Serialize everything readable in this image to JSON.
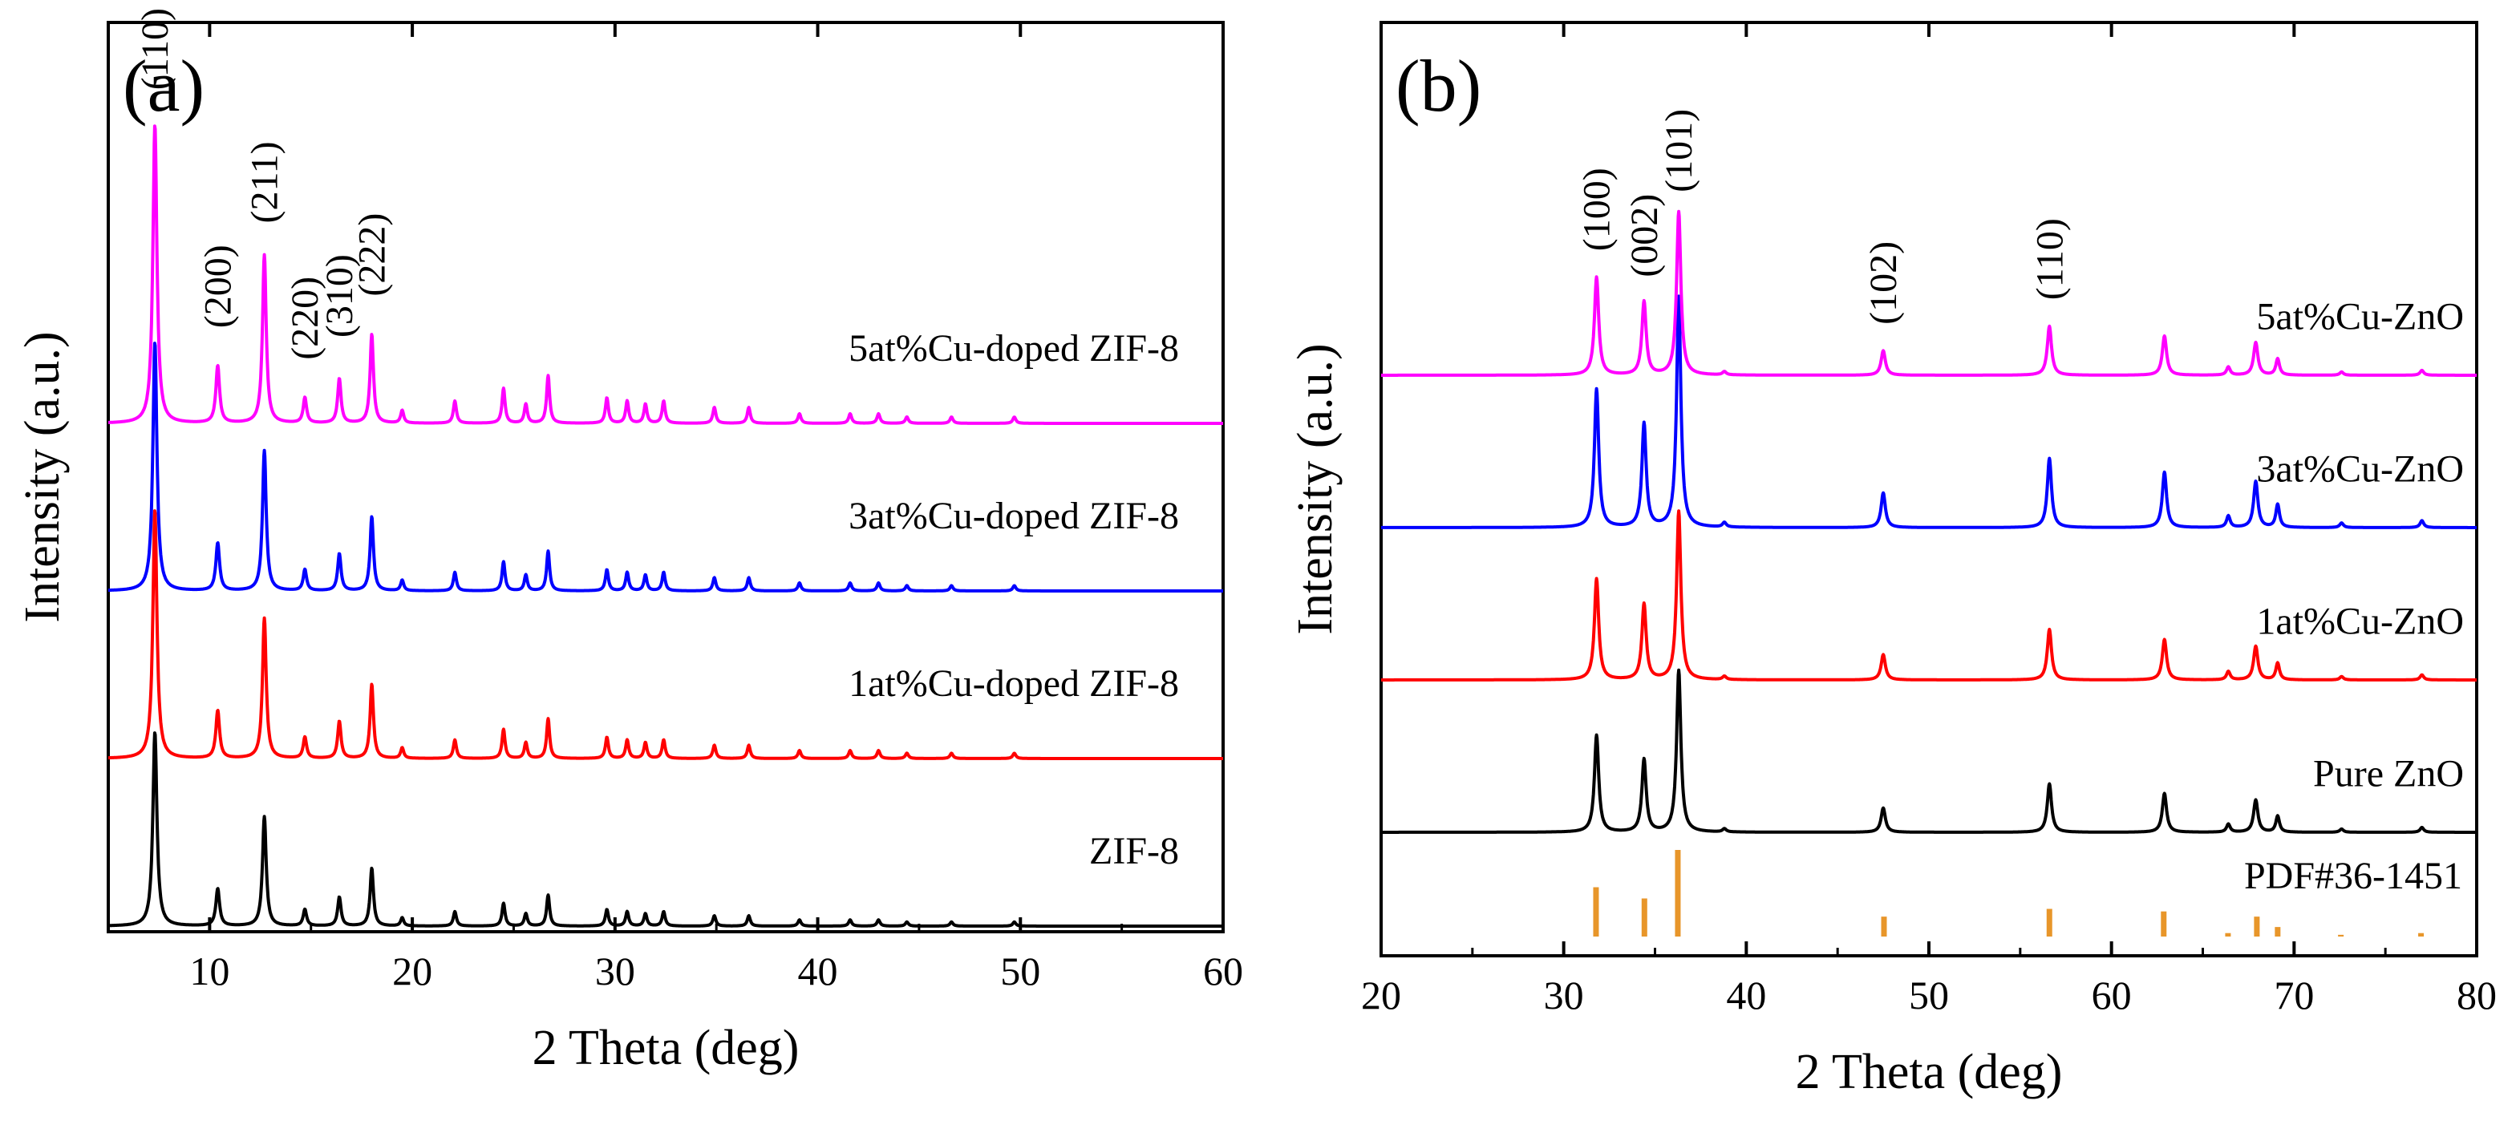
{
  "chart_data": [
    {
      "panel": "(a)",
      "type": "line",
      "xlabel": "2 Theta (deg)",
      "ylabel": "Intensity (a.u.)",
      "xlim": [
        5,
        60
      ],
      "xticks": [
        10,
        20,
        30,
        40,
        50,
        60
      ],
      "yticks": [],
      "offset_step": 1.0,
      "series": [
        {
          "name": "ZIF-8",
          "label": "ZIF-8",
          "color": "#000000",
          "level": 0,
          "scale": 0.78
        },
        {
          "name": "1at%Cu-doped ZIF-8",
          "label": "1at%Cu-doped ZIF-8",
          "color": "#ff0000",
          "level": 1,
          "scale": 1.0
        },
        {
          "name": "3at%Cu-doped ZIF-8",
          "label": "3at%Cu-doped ZIF-8",
          "color": "#0000ff",
          "level": 2,
          "scale": 1.0
        },
        {
          "name": "5at%Cu-doped ZIF-8",
          "label": "5at%Cu-doped ZIF-8",
          "color": "#ff00ff",
          "level": 3,
          "scale": 1.2
        }
      ],
      "peaks": [
        {
          "x": 7.3,
          "h": 0.94,
          "w": 0.12
        },
        {
          "x": 10.4,
          "h": 0.18,
          "w": 0.11
        },
        {
          "x": 12.7,
          "h": 0.53,
          "w": 0.11
        },
        {
          "x": 14.7,
          "h": 0.08,
          "w": 0.1
        },
        {
          "x": 16.4,
          "h": 0.14,
          "w": 0.1
        },
        {
          "x": 18.0,
          "h": 0.28,
          "w": 0.1
        },
        {
          "x": 19.5,
          "h": 0.04,
          "w": 0.09
        },
        {
          "x": 22.1,
          "h": 0.07,
          "w": 0.09
        },
        {
          "x": 24.5,
          "h": 0.11,
          "w": 0.09
        },
        {
          "x": 25.6,
          "h": 0.06,
          "w": 0.09
        },
        {
          "x": 26.7,
          "h": 0.15,
          "w": 0.09
        },
        {
          "x": 29.6,
          "h": 0.08,
          "w": 0.09
        },
        {
          "x": 30.6,
          "h": 0.07,
          "w": 0.09
        },
        {
          "x": 31.5,
          "h": 0.06,
          "w": 0.09
        },
        {
          "x": 32.4,
          "h": 0.07,
          "w": 0.09
        },
        {
          "x": 34.9,
          "h": 0.05,
          "w": 0.09
        },
        {
          "x": 36.6,
          "h": 0.05,
          "w": 0.09
        },
        {
          "x": 39.1,
          "h": 0.03,
          "w": 0.09
        },
        {
          "x": 41.6,
          "h": 0.03,
          "w": 0.09
        },
        {
          "x": 43.0,
          "h": 0.03,
          "w": 0.09
        },
        {
          "x": 44.4,
          "h": 0.02,
          "w": 0.09
        },
        {
          "x": 46.6,
          "h": 0.02,
          "w": 0.09
        },
        {
          "x": 49.7,
          "h": 0.02,
          "w": 0.09
        }
      ],
      "peak_labels": [
        {
          "text": "(110)",
          "x": 7.3,
          "y": 1.05
        },
        {
          "text": "(200)",
          "x": 10.4,
          "y": 0.3
        },
        {
          "text": "(211)",
          "x": 12.7,
          "y": 0.63
        },
        {
          "text": "(220)",
          "x": 14.7,
          "y": 0.2
        },
        {
          "text": "(310)",
          "x": 16.4,
          "y": 0.27
        },
        {
          "text": "(222)",
          "x": 18.0,
          "y": 0.4
        }
      ]
    },
    {
      "panel": "(b)",
      "type": "line",
      "xlabel": "2 Theta (deg)",
      "ylabel": "Intensity (a.u.)",
      "xlim": [
        20,
        80
      ],
      "xticks": [
        20,
        30,
        40,
        50,
        60,
        70,
        80
      ],
      "yticks": [],
      "offset_step": 1.0,
      "series": [
        {
          "name": "Pure ZnO",
          "label": "Pure ZnO",
          "color": "#000000",
          "level": 0,
          "scale": 0.96
        },
        {
          "name": "1at%Cu-ZnO",
          "label": "1at%Cu-ZnO",
          "color": "#ff0000",
          "level": 1,
          "scale": 1.0
        },
        {
          "name": "3at%Cu-ZnO",
          "label": "3at%Cu-ZnO",
          "color": "#0000ff",
          "level": 2,
          "scale": 1.37
        },
        {
          "name": "5at%Cu-ZnO",
          "label": "5at%Cu-ZnO",
          "color": "#ff00ff",
          "level": 3,
          "scale": 0.97
        }
      ],
      "peaks": [
        {
          "x": 31.8,
          "h": 0.6,
          "w": 0.14
        },
        {
          "x": 34.4,
          "h": 0.45,
          "w": 0.14
        },
        {
          "x": 36.3,
          "h": 1.0,
          "w": 0.14
        },
        {
          "x": 38.8,
          "h": 0.02,
          "w": 0.12
        },
        {
          "x": 47.5,
          "h": 0.15,
          "w": 0.14
        },
        {
          "x": 56.6,
          "h": 0.3,
          "w": 0.14
        },
        {
          "x": 62.9,
          "h": 0.24,
          "w": 0.14
        },
        {
          "x": 66.4,
          "h": 0.05,
          "w": 0.12
        },
        {
          "x": 67.9,
          "h": 0.2,
          "w": 0.14
        },
        {
          "x": 69.1,
          "h": 0.1,
          "w": 0.12
        },
        {
          "x": 72.6,
          "h": 0.02,
          "w": 0.12
        },
        {
          "x": 77.0,
          "h": 0.03,
          "w": 0.12
        }
      ],
      "reference": {
        "label": "PDF#36-1451",
        "color": "#e8962a",
        "lines": [
          {
            "x": 31.77,
            "h": 0.57
          },
          {
            "x": 34.42,
            "h": 0.44
          },
          {
            "x": 36.25,
            "h": 1.0
          },
          {
            "x": 47.54,
            "h": 0.23
          },
          {
            "x": 56.6,
            "h": 0.32
          },
          {
            "x": 62.86,
            "h": 0.29
          },
          {
            "x": 66.38,
            "h": 0.04
          },
          {
            "x": 67.96,
            "h": 0.23
          },
          {
            "x": 69.1,
            "h": 0.11
          },
          {
            "x": 72.56,
            "h": 0.02
          },
          {
            "x": 76.95,
            "h": 0.04
          }
        ]
      },
      "peak_labels": [
        {
          "text": "(100)",
          "x": 31.8,
          "y": 0.76
        },
        {
          "text": "(002)",
          "x": 34.4,
          "y": 0.6
        },
        {
          "text": "(101)",
          "x": 36.3,
          "y": 1.12
        },
        {
          "text": "(102)",
          "x": 47.5,
          "y": 0.31
        },
        {
          "text": "(110)",
          "x": 56.6,
          "y": 0.46
        }
      ]
    }
  ]
}
